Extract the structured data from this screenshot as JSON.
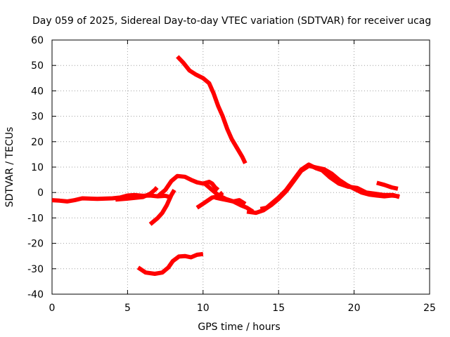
{
  "chart_data": {
    "type": "scatter",
    "title": "Day 059 of 2025, Sidereal Day-to-day VTEC variation (SDTVAR) for receiver ucag",
    "xlabel": "GPS time / hours",
    "ylabel": "SDTVAR / TECUs",
    "xlim": [
      0,
      25
    ],
    "ylim": [
      -40,
      60
    ],
    "xticks": [
      0,
      5,
      10,
      15,
      20,
      25
    ],
    "yticks": [
      -40,
      -30,
      -20,
      -10,
      0,
      10,
      20,
      30,
      40,
      50,
      60
    ],
    "grid": true,
    "color": "#ff0000",
    "series": [
      {
        "name": "trace-1",
        "points": [
          [
            0,
            -3
          ],
          [
            0.5,
            -3.2
          ],
          [
            1,
            -3.5
          ],
          [
            1.5,
            -3
          ],
          [
            2,
            -2.3
          ],
          [
            3,
            -2.5
          ],
          [
            4,
            -2.3
          ],
          [
            4.5,
            -2
          ],
          [
            5,
            -1.2
          ],
          [
            5.5,
            -1
          ],
          [
            6,
            -1.3
          ],
          [
            6.5,
            -1.2
          ],
          [
            7,
            -1.5
          ],
          [
            7.5,
            -1.3
          ],
          [
            7.8,
            -1.8
          ]
        ]
      },
      {
        "name": "trace-2",
        "points": [
          [
            4.2,
            -2.8
          ],
          [
            5,
            -2.4
          ],
          [
            6,
            -1.8
          ],
          [
            6.5,
            -0.5
          ],
          [
            6.8,
            1
          ],
          [
            6.95,
            2
          ]
        ]
      },
      {
        "name": "trace-3",
        "points": [
          [
            6.5,
            -12.5
          ],
          [
            7,
            -10
          ],
          [
            7.3,
            -8
          ],
          [
            7.6,
            -5
          ],
          [
            7.9,
            -1
          ],
          [
            8.1,
            1
          ]
        ]
      },
      {
        "name": "trace-4",
        "points": [
          [
            7.0,
            -1.5
          ],
          [
            7.5,
            1
          ],
          [
            7.9,
            4.5
          ],
          [
            8.3,
            6.5
          ],
          [
            8.8,
            6.2
          ],
          [
            9.2,
            5
          ],
          [
            9.6,
            4
          ],
          [
            10,
            3.5
          ],
          [
            10.4,
            4.2
          ],
          [
            10.6,
            3.5
          ],
          [
            10.8,
            2
          ],
          [
            11,
            1
          ]
        ]
      },
      {
        "name": "trace-5",
        "points": [
          [
            5.7,
            -29.5
          ],
          [
            6.2,
            -31.5
          ],
          [
            6.8,
            -32
          ],
          [
            7.3,
            -31.5
          ],
          [
            7.7,
            -29.5
          ],
          [
            8,
            -27
          ],
          [
            8.4,
            -25.2
          ],
          [
            8.8,
            -25
          ],
          [
            9.2,
            -25.5
          ],
          [
            9.6,
            -24.5
          ],
          [
            10,
            -24.2
          ]
        ]
      },
      {
        "name": "trace-6",
        "points": [
          [
            8.3,
            53.5
          ],
          [
            8.7,
            51
          ],
          [
            9.1,
            48
          ],
          [
            9.5,
            46.5
          ],
          [
            10,
            45
          ],
          [
            10.4,
            43
          ],
          [
            10.7,
            39
          ],
          [
            11,
            34
          ],
          [
            11.3,
            30
          ],
          [
            11.6,
            25
          ],
          [
            11.9,
            21
          ],
          [
            12.3,
            17
          ],
          [
            12.6,
            14
          ],
          [
            12.8,
            11.5
          ]
        ]
      },
      {
        "name": "trace-7",
        "points": [
          [
            9.6,
            -6
          ],
          [
            10.1,
            -4
          ],
          [
            10.6,
            -2
          ],
          [
            11,
            -1.5
          ],
          [
            11.3,
            0
          ]
        ]
      },
      {
        "name": "trace-8",
        "points": [
          [
            10.1,
            3.6
          ],
          [
            10.6,
            1
          ],
          [
            11,
            -1
          ],
          [
            11.5,
            -2.5
          ],
          [
            12,
            -3.5
          ],
          [
            12.5,
            -5
          ],
          [
            12.9,
            -6
          ],
          [
            13.3,
            -7.5
          ]
        ]
      },
      {
        "name": "trace-9",
        "points": [
          [
            10.8,
            -2
          ],
          [
            11.2,
            -2.5
          ],
          [
            11.6,
            -3
          ],
          [
            12,
            -3.5
          ],
          [
            12.4,
            -3
          ],
          [
            12.8,
            -4.5
          ]
        ]
      },
      {
        "name": "trace-10",
        "points": [
          [
            12.9,
            -7.5
          ],
          [
            13.5,
            -8
          ],
          [
            14,
            -7
          ],
          [
            14.5,
            -5
          ],
          [
            15,
            -2.5
          ],
          [
            15.5,
            0.5
          ],
          [
            16,
            4.5
          ],
          [
            16.5,
            8.5
          ],
          [
            17,
            10.5
          ],
          [
            17.5,
            9.8
          ],
          [
            18,
            9.2
          ],
          [
            18.5,
            7.5
          ],
          [
            19,
            5
          ],
          [
            19.5,
            3
          ],
          [
            20,
            1.5
          ],
          [
            20.5,
            0
          ],
          [
            21,
            -0.8
          ],
          [
            21.5,
            -1.2
          ],
          [
            22,
            -1.5
          ],
          [
            22.5,
            -1.2
          ],
          [
            23,
            -1.5
          ]
        ]
      },
      {
        "name": "trace-11",
        "points": [
          [
            13.8,
            -6.5
          ],
          [
            14.2,
            -6
          ],
          [
            14.6,
            -4
          ],
          [
            15,
            -2
          ],
          [
            15.5,
            1
          ],
          [
            16,
            5
          ],
          [
            16.5,
            9
          ],
          [
            17,
            11
          ],
          [
            17.5,
            9.5
          ],
          [
            18,
            8.5
          ]
        ]
      },
      {
        "name": "trace-12",
        "points": [
          [
            17.8,
            9.2
          ],
          [
            18.4,
            6
          ],
          [
            19,
            3.5
          ],
          [
            19.6,
            2.3
          ],
          [
            20.2,
            1.8
          ],
          [
            20.8,
            0
          ],
          [
            21.4,
            -0.5
          ],
          [
            22,
            -1
          ],
          [
            22.6,
            -1
          ],
          [
            23,
            -1.8
          ]
        ]
      },
      {
        "name": "trace-13",
        "points": [
          [
            21.5,
            3.8
          ],
          [
            22,
            3
          ],
          [
            22.5,
            2
          ],
          [
            22.9,
            1.5
          ]
        ]
      }
    ]
  }
}
